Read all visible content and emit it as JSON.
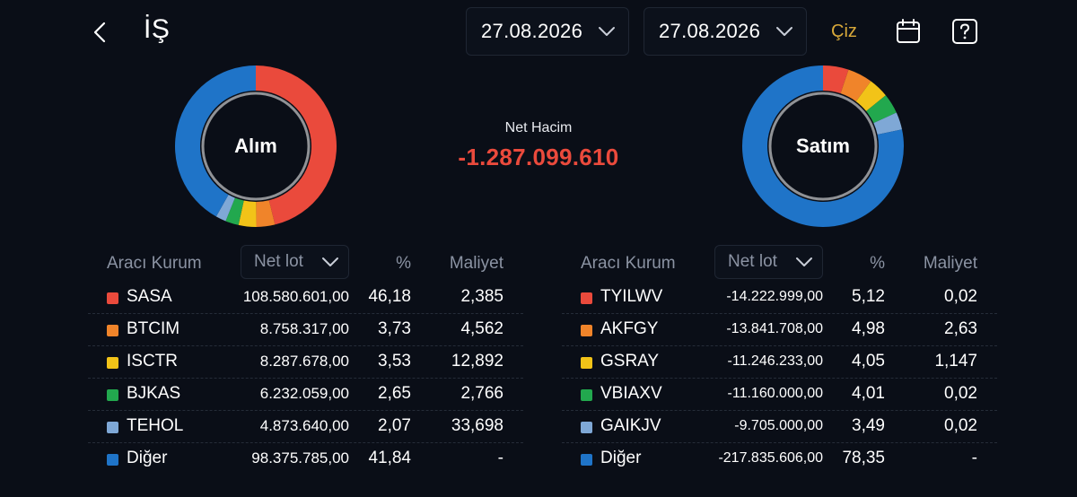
{
  "header": {
    "title": "İŞ",
    "date_start": "27.08.2026",
    "date_end": "27.08.2026",
    "draw_label": "Çiz",
    "back_icon": "chevron-left-icon",
    "calendar_icon": "calendar-icon",
    "help_icon": "question-icon"
  },
  "summary": {
    "net_label": "Net Hacim",
    "net_value": "-1.287.099.610",
    "net_color": "#ea4a3c"
  },
  "colors": {
    "red": "#ea4a3c",
    "orange": "#f0842a",
    "yellow": "#f2c318",
    "green": "#22a84e",
    "lightblue": "#7fa8d6",
    "blue": "#1f74c8",
    "accent": "#d9a93a"
  },
  "buy": {
    "donut_label": "Alım",
    "header": {
      "broker": "Aracı Kurum",
      "sort": "Net lot",
      "pct": "%",
      "cost": "Maliyet"
    },
    "rows": [
      {
        "name": "SASA",
        "lot": "108.580.601,00",
        "pct": "46,18",
        "cost": "2,385",
        "color": "#ea4a3c"
      },
      {
        "name": "BTCIM",
        "lot": "8.758.317,00",
        "pct": "3,73",
        "cost": "4,562",
        "color": "#f0842a"
      },
      {
        "name": "ISCTR",
        "lot": "8.287.678,00",
        "pct": "3,53",
        "cost": "12,892",
        "color": "#f2c318"
      },
      {
        "name": "BJKAS",
        "lot": "6.232.059,00",
        "pct": "2,65",
        "cost": "2,766",
        "color": "#22a84e"
      },
      {
        "name": "TEHOL",
        "lot": "4.873.640,00",
        "pct": "2,07",
        "cost": "33,698",
        "color": "#7fa8d6"
      },
      {
        "name": "Diğer",
        "lot": "98.375.785,00",
        "pct": "41,84",
        "cost": "-",
        "color": "#1f74c8"
      }
    ]
  },
  "sell": {
    "donut_label": "Satım",
    "header": {
      "broker": "Aracı Kurum",
      "sort": "Net lot",
      "pct": "%",
      "cost": "Maliyet"
    },
    "rows": [
      {
        "name": "TYILWV",
        "lot": "-14.222.999,00",
        "pct": "5,12",
        "cost": "0,02",
        "color": "#ea4a3c"
      },
      {
        "name": "AKFGY",
        "lot": "-13.841.708,00",
        "pct": "4,98",
        "cost": "2,63",
        "color": "#f0842a"
      },
      {
        "name": "GSRAY",
        "lot": "-11.246.233,00",
        "pct": "4,05",
        "cost": "1,147",
        "color": "#f2c318"
      },
      {
        "name": "VBIAXV",
        "lot": "-11.160.000,00",
        "pct": "4,01",
        "cost": "0,02",
        "color": "#22a84e"
      },
      {
        "name": "GAIKJV",
        "lot": "-9.705.000,00",
        "pct": "3,49",
        "cost": "0,02",
        "color": "#7fa8d6"
      },
      {
        "name": "Diğer",
        "lot": "-217.835.606,00",
        "pct": "78,35",
        "cost": "-",
        "color": "#1f74c8"
      }
    ]
  }
}
